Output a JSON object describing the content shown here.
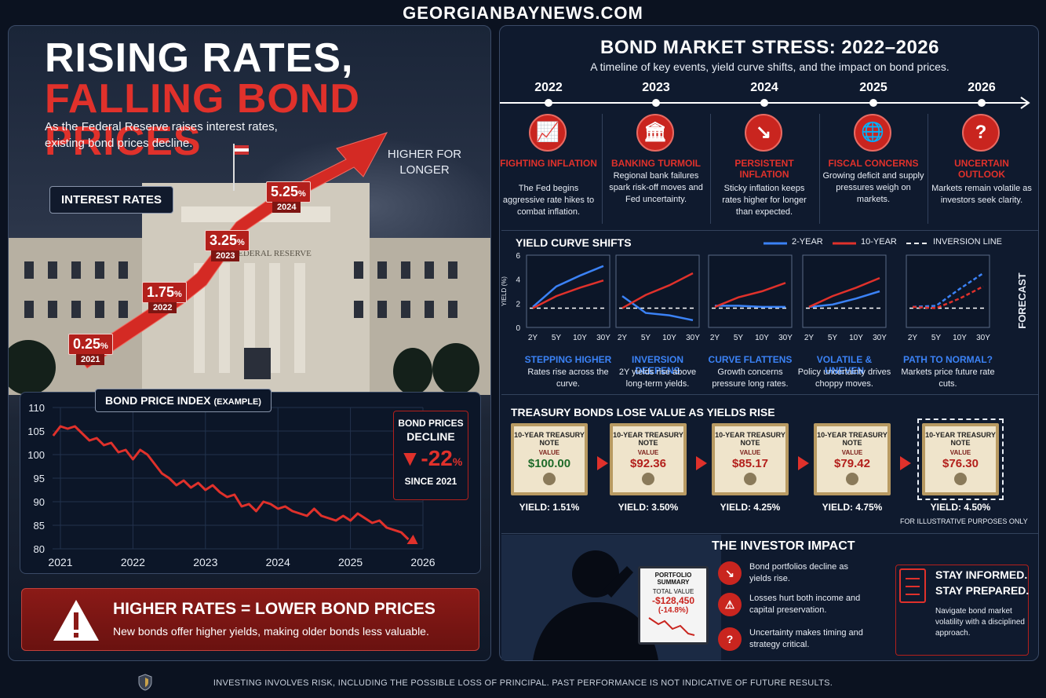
{
  "site_title": "GEORGIANBAYNEWS.COM",
  "left": {
    "title_line1": "RISING RATES,",
    "title_line2": "FALLING BOND PRICES",
    "subtitle": "As the Federal Reserve raises interest rates, existing bond prices decline.",
    "higher_for_longer": "HIGHER FOR LONGER",
    "interest_rates_badge": "INTEREST RATES",
    "building_sign": "FEDERAL RESERVE",
    "rates": [
      {
        "value": "0.25",
        "unit": "%",
        "year": "2021"
      },
      {
        "value": "1.75",
        "unit": "%",
        "year": "2022"
      },
      {
        "value": "3.25",
        "unit": "%",
        "year": "2023"
      },
      {
        "value": "5.25",
        "unit": "%",
        "year": "2024"
      }
    ],
    "bond_index_title": "BOND PRICE INDEX",
    "bond_index_title_note": "(EXAMPLE)",
    "decline": {
      "line1": "BOND PRICES",
      "line2": "DECLINE",
      "arrow": "▼",
      "pct": "-22",
      "pct_unit": "%",
      "since": "SINCE 2021"
    },
    "warning": {
      "title": "HIGHER RATES = LOWER BOND PRICES",
      "text": "New bonds offer higher yields, making older bonds less valuable."
    }
  },
  "right": {
    "title": "BOND MARKET STRESS: 2022–2026",
    "subtitle": "A timeline of key events, yield curve shifts, and the impact on bond prices.",
    "timeline": [
      {
        "year": "2022",
        "icon": "chart-up-icon",
        "glyph": "📈",
        "title": "FIGHTING INFLATION",
        "desc": "The Fed begins aggressive rate hikes to combat inflation."
      },
      {
        "year": "2023",
        "icon": "bank-icon",
        "glyph": "🏛",
        "title": "BANKING TURMOIL",
        "desc": "Regional bank failures spark risk-off moves and Fed uncertainty."
      },
      {
        "year": "2024",
        "icon": "trend-down-icon",
        "glyph": "↘",
        "title": "PERSISTENT INFLATION",
        "desc": "Sticky inflation keeps rates higher for longer than expected."
      },
      {
        "year": "2025",
        "icon": "globe-icon",
        "glyph": "🌐",
        "title": "FISCAL CONCERNS",
        "desc": "Growing deficit and supply pressures weigh on markets."
      },
      {
        "year": "2026",
        "icon": "question-icon",
        "glyph": "?",
        "title": "UNCERTAIN OUTLOOK",
        "desc": "Markets remain volatile as investors seek clarity."
      }
    ],
    "yield_curve_title": "YIELD CURVE SHIFTS",
    "legend": {
      "two_year": "2-YEAR",
      "ten_year": "10-YEAR",
      "inversion": "INVERSION LINE"
    },
    "y_axis_label": "YIELD (%)",
    "forecast_label": "FORECAST",
    "yield_panels": [
      {
        "caption": "STEPPING HIGHER",
        "desc": "Rates rise across the curve."
      },
      {
        "caption": "INVERSION DEEPENS",
        "desc": "2Y yields rise above long-term yields."
      },
      {
        "caption": "CURVE FLATTENS",
        "desc": "Growth concerns pressure long rates."
      },
      {
        "caption": "VOLATILE & UNEVEN",
        "desc": "Policy uncertainty drives choppy moves."
      },
      {
        "caption": "PATH TO NORMAL?",
        "desc": "Markets price future rate cuts."
      }
    ],
    "treasury_title": "TREASURY BONDS LOSE VALUE AS YIELDS RISE",
    "notes": [
      {
        "name": "10-YEAR TREASURY NOTE",
        "value_label": "VALUE",
        "value": "$100.00",
        "value_color": "#1f6b2a",
        "yield": "YIELD: 1.51%"
      },
      {
        "name": "10-YEAR TREASURY NOTE",
        "value_label": "VALUE",
        "value": "$92.36",
        "value_color": "#b3201c",
        "yield": "YIELD: 3.50%"
      },
      {
        "name": "10-YEAR TREASURY NOTE",
        "value_label": "VALUE",
        "value": "$85.17",
        "value_color": "#b3201c",
        "yield": "YIELD: 4.25%"
      },
      {
        "name": "10-YEAR TREASURY NOTE",
        "value_label": "VALUE",
        "value": "$79.42",
        "value_color": "#b3201c",
        "yield": "YIELD: 4.75%"
      },
      {
        "name": "10-YEAR TREASURY NOTE",
        "value_label": "VALUE",
        "value": "$76.30",
        "value_color": "#b3201c",
        "yield": "YIELD: 4.50%"
      }
    ],
    "illustrative": "FOR ILLUSTRATIVE PURPOSES ONLY",
    "investor_title": "THE INVESTOR IMPACT",
    "portfolio": {
      "title": "PORTFOLIO SUMMARY",
      "total_label": "TOTAL VALUE",
      "total": "-$128,450",
      "pct": "(-14.8%)"
    },
    "impacts": [
      {
        "icon": "trend-down-icon",
        "glyph": "↘",
        "text": "Bond portfolios decline as yields rise."
      },
      {
        "icon": "warning-icon",
        "glyph": "⚠",
        "text": "Losses hurt both income and capital preservation."
      },
      {
        "icon": "question-icon",
        "glyph": "?",
        "text": "Uncertainty makes timing and strategy critical."
      }
    ],
    "stay": {
      "line1": "STAY INFORMED.",
      "line2": "STAY PREPARED.",
      "desc": "Navigate bond market volatility with a disciplined approach."
    }
  },
  "disclaimer": "INVESTING INVOLVES RISK, INCLUDING THE POSSIBLE LOSS OF PRINCIPAL.  PAST PERFORMANCE IS NOT INDICATIVE OF FUTURE RESULTS.",
  "colors": {
    "accent_red": "#e0312b",
    "two_year_blue": "#3b82f6",
    "ten_year_red": "#e0312b"
  },
  "chart_data": [
    {
      "type": "line",
      "title": "BOND PRICE INDEX (EXAMPLE)",
      "x_ticks": [
        "2021",
        "2022",
        "2023",
        "2024",
        "2025",
        "2026"
      ],
      "y_ticks": [
        80,
        85,
        90,
        95,
        100,
        105,
        110
      ],
      "ylim": [
        80,
        110
      ],
      "xlim": [
        2021,
        2026
      ],
      "x": [
        2020.9,
        2021.0,
        2021.1,
        2021.2,
        2021.3,
        2021.4,
        2021.5,
        2021.6,
        2021.7,
        2021.8,
        2021.9,
        2022.0,
        2022.1,
        2022.2,
        2022.3,
        2022.4,
        2022.5,
        2022.6,
        2022.7,
        2022.8,
        2022.9,
        2023.0,
        2023.1,
        2023.2,
        2023.3,
        2023.4,
        2023.5,
        2023.6,
        2023.7,
        2023.8,
        2023.9,
        2024.0,
        2024.1,
        2024.2,
        2024.3,
        2024.4,
        2024.5,
        2024.6,
        2024.7,
        2024.8,
        2024.9,
        2025.0,
        2025.1,
        2025.2,
        2025.3,
        2025.4,
        2025.5,
        2025.6,
        2025.7,
        2025.8
      ],
      "values": [
        104,
        106,
        105.5,
        106,
        104.5,
        103,
        103.5,
        102,
        102.5,
        100.5,
        101,
        99,
        101,
        100,
        98,
        96,
        95,
        93.5,
        94.5,
        93,
        94,
        92.5,
        93.5,
        92,
        91,
        91.5,
        89,
        89.5,
        88,
        90,
        89.5,
        88.5,
        89,
        88,
        87.5,
        87,
        88.5,
        87,
        86.5,
        86,
        87,
        86,
        87.5,
        86.5,
        85.5,
        86,
        84.5,
        84,
        83.5,
        82
      ],
      "grid": true
    },
    {
      "type": "line",
      "title": "YIELD CURVE SHIFTS",
      "ylabel": "YIELD (%)",
      "y_ticks": [
        0,
        2,
        4,
        6
      ],
      "ylim": [
        0,
        6
      ],
      "categories": [
        "2Y",
        "5Y",
        "10Y",
        "30Y"
      ],
      "panels": [
        {
          "series": [
            {
              "name": "2-YEAR",
              "values": [
                1.7,
                3.4,
                4.3,
                5.1
              ]
            },
            {
              "name": "10-YEAR",
              "values": [
                1.6,
                2.6,
                3.3,
                3.9
              ]
            }
          ],
          "inversion": 1.6,
          "forecast": false
        },
        {
          "series": [
            {
              "name": "2-YEAR",
              "values": [
                2.6,
                1.2,
                1.0,
                0.6
              ]
            },
            {
              "name": "10-YEAR",
              "values": [
                1.6,
                2.7,
                3.5,
                4.5
              ]
            }
          ],
          "inversion": 1.6,
          "forecast": false
        },
        {
          "series": [
            {
              "name": "2-YEAR",
              "values": [
                1.8,
                1.8,
                1.7,
                1.7
              ]
            },
            {
              "name": "10-YEAR",
              "values": [
                1.7,
                2.5,
                3.0,
                3.7
              ]
            }
          ],
          "inversion": 1.6,
          "forecast": false
        },
        {
          "series": [
            {
              "name": "2-YEAR",
              "values": [
                1.7,
                1.9,
                2.4,
                3.0
              ]
            },
            {
              "name": "10-YEAR",
              "values": [
                1.7,
                2.6,
                3.3,
                4.1
              ]
            }
          ],
          "inversion": 1.6,
          "forecast": false
        },
        {
          "series": [
            {
              "name": "2-YEAR",
              "values": [
                1.7,
                1.8,
                3.2,
                4.5
              ]
            },
            {
              "name": "10-YEAR",
              "values": [
                1.7,
                1.6,
                2.4,
                3.4
              ]
            }
          ],
          "inversion": 1.6,
          "forecast": true
        }
      ]
    }
  ]
}
